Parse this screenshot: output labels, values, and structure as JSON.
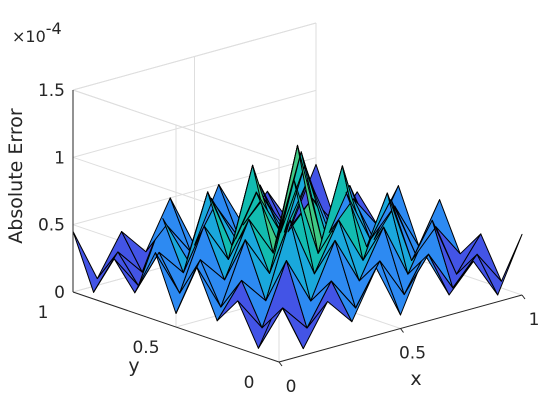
{
  "chart_data": {
    "type": "surface",
    "title": "",
    "xlabel": "x",
    "ylabel": "y",
    "zlabel": "Absolute Error",
    "z_exponent_label": "×10",
    "z_exponent_value": "-4",
    "xlim": [
      0,
      1
    ],
    "ylim": [
      0,
      1
    ],
    "zlim": [
      0,
      1.5
    ],
    "x_ticks": [
      "0",
      "0.5",
      "1"
    ],
    "y_ticks": [
      "0",
      "0.5",
      "1"
    ],
    "z_ticks": [
      "0",
      "0.5",
      "1",
      "1.5"
    ],
    "grid": true,
    "colormap": "parula",
    "x": [
      0,
      0.1,
      0.2,
      0.3,
      0.4,
      0.5,
      0.6,
      0.7,
      0.8,
      0.9,
      1
    ],
    "y": [
      0,
      0.1,
      0.2,
      0.3,
      0.4,
      0.5,
      0.6,
      0.7,
      0.8,
      0.9,
      1
    ],
    "z": [
      [
        0.45,
        0.05,
        0.35,
        0.15,
        0.5,
        0.1,
        0.5,
        0.15,
        0.35,
        0.05,
        0.45
      ],
      [
        0.05,
        0.3,
        0.1,
        0.4,
        0.15,
        0.45,
        0.15,
        0.4,
        0.1,
        0.3,
        0.05
      ],
      [
        0.35,
        0.1,
        0.55,
        0.2,
        0.6,
        0.25,
        0.6,
        0.2,
        0.55,
        0.1,
        0.35
      ],
      [
        0.15,
        0.4,
        0.2,
        0.75,
        0.3,
        0.65,
        0.3,
        0.75,
        0.2,
        0.4,
        0.15
      ],
      [
        0.5,
        0.15,
        0.6,
        0.3,
        0.95,
        0.35,
        0.95,
        0.3,
        0.6,
        0.15,
        0.5
      ],
      [
        0.1,
        0.45,
        0.25,
        0.65,
        0.35,
        1.1,
        0.35,
        0.65,
        0.25,
        0.45,
        0.1
      ],
      [
        0.5,
        0.15,
        0.6,
        0.3,
        0.95,
        0.35,
        0.95,
        0.3,
        0.6,
        0.15,
        0.5
      ],
      [
        0.15,
        0.4,
        0.2,
        0.75,
        0.3,
        0.65,
        0.3,
        0.75,
        0.2,
        0.4,
        0.15
      ],
      [
        0.35,
        0.1,
        0.55,
        0.2,
        0.6,
        0.25,
        0.6,
        0.2,
        0.55,
        0.1,
        0.35
      ],
      [
        0.05,
        0.3,
        0.1,
        0.4,
        0.15,
        0.45,
        0.15,
        0.4,
        0.1,
        0.3,
        0.05
      ],
      [
        0.45,
        0.05,
        0.35,
        0.15,
        0.5,
        0.1,
        0.5,
        0.15,
        0.35,
        0.05,
        0.45
      ]
    ]
  }
}
